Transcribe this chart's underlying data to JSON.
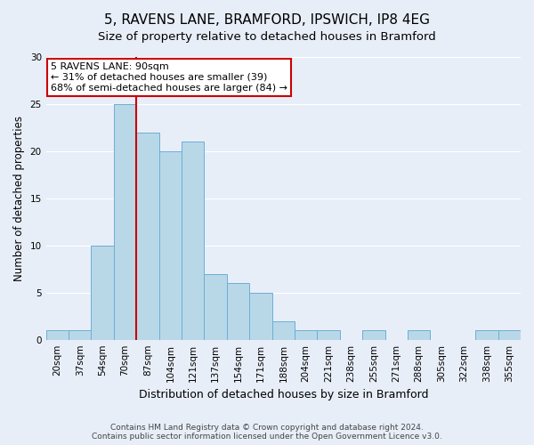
{
  "title": "5, RAVENS LANE, BRAMFORD, IPSWICH, IP8 4EG",
  "subtitle": "Size of property relative to detached houses in Bramford",
  "xlabel": "Distribution of detached houses by size in Bramford",
  "ylabel": "Number of detached properties",
  "bin_labels": [
    "20sqm",
    "37sqm",
    "54sqm",
    "70sqm",
    "87sqm",
    "104sqm",
    "121sqm",
    "137sqm",
    "154sqm",
    "171sqm",
    "188sqm",
    "204sqm",
    "221sqm",
    "238sqm",
    "255sqm",
    "271sqm",
    "288sqm",
    "305sqm",
    "322sqm",
    "338sqm",
    "355sqm"
  ],
  "bin_values": [
    1,
    1,
    10,
    25,
    22,
    20,
    21,
    7,
    6,
    5,
    2,
    1,
    1,
    0,
    1,
    0,
    1,
    0,
    0,
    1,
    1
  ],
  "bar_color": "#b8d8e8",
  "bar_edge_color": "#6baed6",
  "red_line_index": 4,
  "annotation_text": "5 RAVENS LANE: 90sqm\n← 31% of detached houses are smaller (39)\n68% of semi-detached houses are larger (84) →",
  "annotation_box_color": "#ffffff",
  "annotation_box_edge": "#cc0000",
  "ylim": [
    0,
    30
  ],
  "yticks": [
    0,
    5,
    10,
    15,
    20,
    25,
    30
  ],
  "background_color": "#e8eef8",
  "plot_bg_color": "#e8eef8",
  "grid_color": "#ffffff",
  "footer_line1": "Contains HM Land Registry data © Crown copyright and database right 2024.",
  "footer_line2": "Contains public sector information licensed under the Open Government Licence v3.0.",
  "title_fontsize": 11,
  "subtitle_fontsize": 9.5,
  "ylabel_fontsize": 8.5,
  "xlabel_fontsize": 9,
  "tick_fontsize": 7.5,
  "annotation_fontsize": 8,
  "footer_fontsize": 6.5
}
